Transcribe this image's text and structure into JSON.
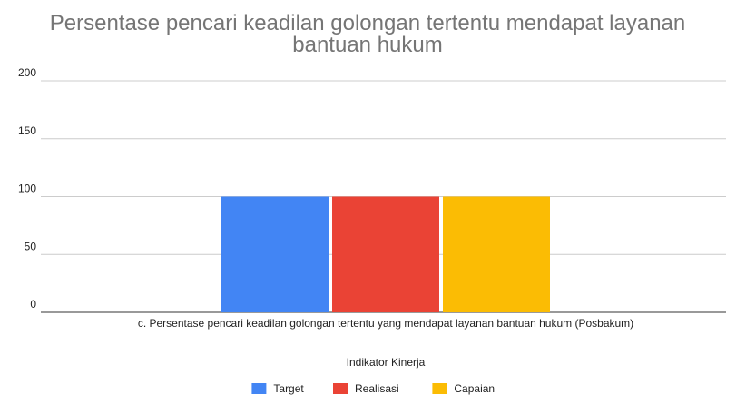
{
  "chart_data": {
    "type": "bar",
    "title": "Persentase pencari keadilan golongan tertentu mendapat layanan bantuan hukum",
    "categories": [
      "c. Persentase pencari keadilan golongan tertentu yang mendapat layanan bantuan hukum (Posbakum)"
    ],
    "series": [
      {
        "name": "Target",
        "color": "#4285f4",
        "values": [
          100
        ]
      },
      {
        "name": "Realisasi",
        "color": "#ea4335",
        "values": [
          100
        ]
      },
      {
        "name": "Capaian",
        "color": "#fbbc04",
        "values": [
          100
        ]
      }
    ],
    "x_label": "Indikator Kinerja",
    "ylim": [
      0,
      200
    ],
    "yticks": [
      0,
      50,
      100,
      150,
      200
    ],
    "grid": true,
    "legend": "bottom"
  }
}
